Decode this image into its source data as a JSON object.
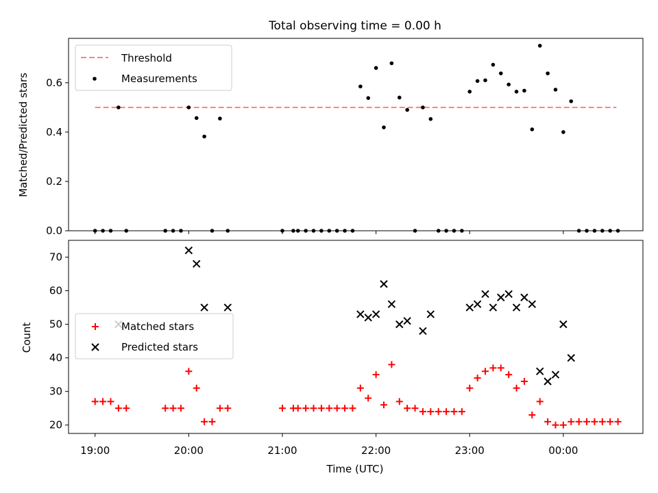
{
  "figure_title": "Total observing time = 0.00 h",
  "chart_data": [
    {
      "type": "scatter",
      "ylabel": "Matched/Predicted stars",
      "ylim": [
        0,
        0.78
      ],
      "y_ticks": [
        0.0,
        0.2,
        0.4,
        0.6
      ],
      "y_tick_labels": [
        "0.0",
        "0.2",
        "0.4",
        "0.6"
      ],
      "xlim": [
        "18:43",
        "00:51"
      ],
      "legend": {
        "position": "upper-left",
        "threshold_label": "Threshold",
        "measurements_label": "Measurements"
      },
      "threshold": {
        "y": 0.5,
        "x_start": "19:00",
        "x_end": "00:34",
        "color": "#ff7f7f",
        "style": "dashed"
      },
      "measurements": {
        "color": "#000000",
        "x": [
          "19:00",
          "19:05",
          "19:10",
          "19:15",
          "19:20",
          "19:45",
          "19:50",
          "19:55",
          "20:00",
          "20:05",
          "20:10",
          "20:15",
          "20:20",
          "20:25",
          "21:00",
          "21:07",
          "21:10",
          "21:15",
          "21:20",
          "21:25",
          "21:30",
          "21:35",
          "21:40",
          "21:45",
          "21:50",
          "21:55",
          "22:00",
          "22:05",
          "22:10",
          "22:15",
          "22:20",
          "22:25",
          "22:30",
          "22:35",
          "22:40",
          "22:45",
          "22:50",
          "22:55",
          "23:00",
          "23:05",
          "23:10",
          "23:15",
          "23:20",
          "23:25",
          "23:30",
          "23:35",
          "23:40",
          "23:45",
          "23:50",
          "23:55",
          "00:00",
          "00:05",
          "00:10",
          "00:15",
          "00:20",
          "00:25",
          "00:30",
          "00:35"
        ],
        "y": [
          0,
          0,
          0,
          0.5,
          0,
          0,
          0,
          0,
          0.5,
          0.457,
          0.382,
          0,
          0.455,
          0,
          0,
          0,
          0,
          0,
          0,
          0,
          0,
          0,
          0,
          0,
          0.585,
          0.538,
          0.66,
          0.419,
          0.679,
          0.54,
          0.49,
          0,
          0.5,
          0.453,
          0,
          0,
          0,
          0,
          0.564,
          0.607,
          0.61,
          0.673,
          0.638,
          0.593,
          0.564,
          0.568,
          0.411,
          0.75,
          0.638,
          0.572,
          0.4,
          0.525,
          0,
          0,
          0,
          0,
          0,
          0
        ]
      }
    },
    {
      "type": "scatter",
      "xlabel": "Time (UTC)",
      "ylabel": "Count",
      "ylim": [
        17.5,
        75
      ],
      "y_ticks": [
        20,
        30,
        40,
        50,
        60,
        70
      ],
      "y_tick_labels": [
        "20",
        "30",
        "40",
        "50",
        "60",
        "70"
      ],
      "x_ticks": [
        "19:00",
        "20:00",
        "21:00",
        "22:00",
        "23:00",
        "00:00"
      ],
      "xlim": [
        "18:43",
        "00:51"
      ],
      "legend": {
        "position": "center-left",
        "matched_label": "Matched stars",
        "predicted_label": "Predicted stars"
      },
      "series": [
        {
          "name": "Matched stars",
          "marker": "plus",
          "color": "#ff0000",
          "x": [
            "19:00",
            "19:05",
            "19:10",
            "19:15",
            "19:20",
            "19:45",
            "19:50",
            "19:55",
            "20:00",
            "20:05",
            "20:10",
            "20:15",
            "20:20",
            "20:25",
            "21:00",
            "21:07",
            "21:10",
            "21:15",
            "21:20",
            "21:25",
            "21:30",
            "21:35",
            "21:40",
            "21:45",
            "21:50",
            "21:55",
            "22:00",
            "22:05",
            "22:10",
            "22:15",
            "22:20",
            "22:25",
            "22:30",
            "22:35",
            "22:40",
            "22:45",
            "22:50",
            "22:55",
            "23:00",
            "23:05",
            "23:10",
            "23:15",
            "23:20",
            "23:25",
            "23:30",
            "23:35",
            "23:40",
            "23:45",
            "23:50",
            "23:55",
            "00:00",
            "00:05",
            "00:10",
            "00:15",
            "00:20",
            "00:25",
            "00:30",
            "00:35"
          ],
          "y": [
            27,
            27,
            27,
            25,
            25,
            25,
            25,
            25,
            36,
            31,
            21,
            21,
            25,
            25,
            25,
            25,
            25,
            25,
            25,
            25,
            25,
            25,
            25,
            25,
            31,
            28,
            35,
            26,
            38,
            27,
            25,
            25,
            24,
            24,
            24,
            24,
            24,
            24,
            31,
            34,
            36,
            37,
            37,
            35,
            31,
            33,
            23,
            27,
            21,
            20,
            20,
            21,
            21,
            21,
            21,
            21,
            21,
            21
          ]
        },
        {
          "name": "Predicted stars",
          "marker": "x",
          "color": "#000000",
          "x": [
            "19:15",
            "20:00",
            "20:05",
            "20:10",
            "20:25",
            "21:50",
            "21:55",
            "22:00",
            "22:05",
            "22:10",
            "22:15",
            "22:20",
            "22:30",
            "22:35",
            "23:00",
            "23:05",
            "23:10",
            "23:15",
            "23:20",
            "23:25",
            "23:30",
            "23:35",
            "23:40",
            "23:45",
            "23:50",
            "23:55",
            "00:00",
            "00:05"
          ],
          "y": [
            50,
            72,
            68,
            55,
            55,
            53,
            52,
            53,
            62,
            56,
            50,
            51,
            48,
            53,
            55,
            56,
            59,
            55,
            58,
            59,
            55,
            58,
            56,
            36,
            33,
            35,
            50,
            40
          ]
        }
      ]
    }
  ]
}
